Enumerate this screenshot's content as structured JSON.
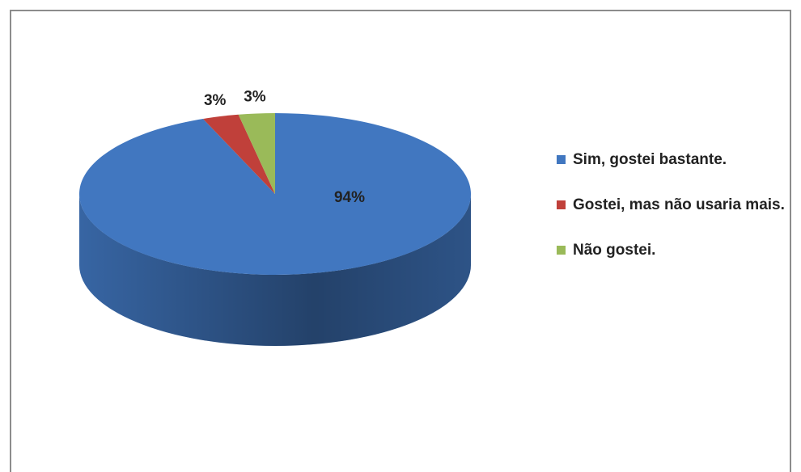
{
  "chart_data": {
    "type": "pie",
    "categories": [
      "Sim, gostei bastante.",
      "Gostei, mas não usaria mais.",
      "Não gostei."
    ],
    "values": [
      94,
      3,
      3
    ],
    "value_labels": [
      "94%",
      "3%",
      "3%"
    ],
    "colors": [
      "#4177c0",
      "#c0403a",
      "#9aba59"
    ],
    "legend": "right"
  }
}
